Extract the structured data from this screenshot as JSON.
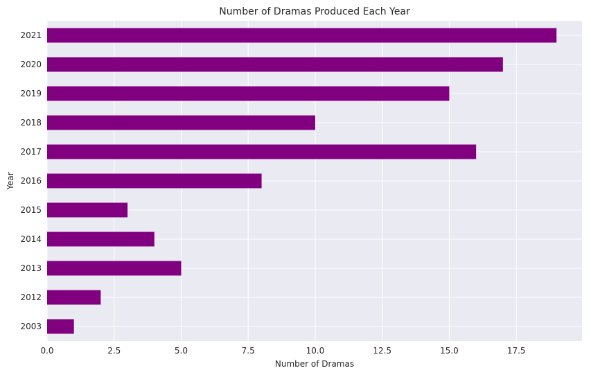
{
  "chart_data": {
    "type": "bar",
    "orientation": "horizontal",
    "title": "Number of Dramas Produced Each Year",
    "xlabel": "Number of Dramas",
    "ylabel": "Year",
    "categories": [
      "2003",
      "2012",
      "2013",
      "2014",
      "2015",
      "2016",
      "2017",
      "2018",
      "2019",
      "2020",
      "2021"
    ],
    "values": [
      1,
      2,
      5,
      4,
      3,
      8,
      16,
      10,
      15,
      17,
      19
    ],
    "xlim": [
      0,
      19.95
    ],
    "xticks": [
      0.0,
      2.5,
      5.0,
      7.5,
      10.0,
      12.5,
      15.0,
      17.5
    ],
    "xtick_labels": [
      "0.0",
      "2.5",
      "5.0",
      "7.5",
      "10.0",
      "12.5",
      "15.0",
      "17.5"
    ],
    "grid": true,
    "bar_color": "#800080",
    "background_color": "#eaeaf2",
    "grid_color": "#ffffff"
  }
}
